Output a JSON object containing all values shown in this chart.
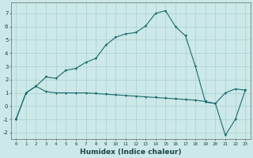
{
  "xlabel": "Humidex (Indice chaleur)",
  "bg_color": "#cce8e8",
  "line_color": "#1a6b6b",
  "grid_color": "#aacfcf",
  "xlim": [
    -0.5,
    23.5
  ],
  "ylim": [
    -2.5,
    7.8
  ],
  "yticks": [
    -2,
    -1,
    0,
    1,
    2,
    3,
    4,
    5,
    6,
    7
  ],
  "xticks": [
    0,
    1,
    2,
    3,
    4,
    5,
    6,
    7,
    8,
    9,
    10,
    11,
    12,
    13,
    14,
    15,
    16,
    17,
    18,
    19,
    20,
    21,
    22,
    23
  ],
  "series_curve_x": [
    0,
    1,
    2,
    3,
    4,
    5,
    6,
    7,
    8,
    9,
    10,
    11,
    12,
    13,
    14,
    15,
    16,
    17,
    18,
    19,
    20,
    21,
    22,
    23
  ],
  "series_curve_y": [
    -1.0,
    1.0,
    1.5,
    2.2,
    2.1,
    2.7,
    2.85,
    3.3,
    3.6,
    4.6,
    5.2,
    5.45,
    5.55,
    6.05,
    7.0,
    7.2,
    6.0,
    5.3,
    3.0,
    0.3,
    0.2,
    -2.2,
    -1.0,
    1.2
  ],
  "series_flat_x": [
    0,
    1,
    2,
    3,
    4,
    5,
    6,
    7,
    8,
    9,
    10,
    11,
    12,
    13,
    14,
    15,
    16,
    17,
    18,
    19,
    20,
    21,
    22,
    23
  ],
  "series_flat_y": [
    -1.0,
    1.0,
    1.5,
    1.1,
    1.0,
    1.0,
    1.0,
    1.0,
    0.95,
    0.9,
    0.85,
    0.8,
    0.75,
    0.7,
    0.65,
    0.6,
    0.55,
    0.5,
    0.45,
    0.35,
    0.2,
    1.0,
    1.3,
    1.2
  ]
}
